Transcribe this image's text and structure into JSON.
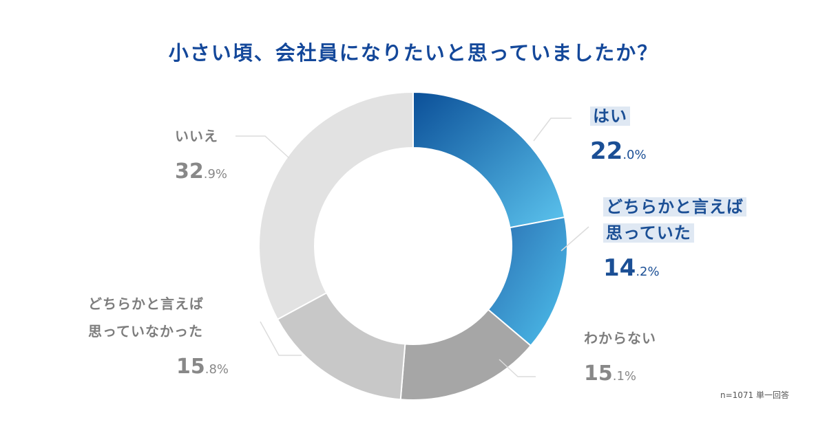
{
  "title": "小さい頃、会社員になりたいと思っていましたか？",
  "note": "n=1071 単一回答",
  "colors": {
    "title": "#14489a",
    "blue_label": "#1b4f95",
    "grey_label": "#7d7d7d",
    "slices": [
      "#3d8fcf",
      "#3aa6de",
      "#a6a6a6",
      "#c8c8c8",
      "#e2e2e2"
    ]
  },
  "chart_data": {
    "type": "pie",
    "donut": true,
    "categories": [
      "はい",
      "どちらかと言えば思っていた",
      "わからない",
      "どちらかと言えば思っていなかった",
      "いいえ"
    ],
    "values": [
      22.0,
      14.2,
      15.1,
      15.8,
      32.9
    ],
    "unit": "%"
  },
  "labels": {
    "yes": {
      "name": "はい",
      "pct_int": "22",
      "pct_dec": ".0%"
    },
    "somewhat_yes": {
      "line1": "どちらかと言えば",
      "line2": "思っていた",
      "pct_int": "14",
      "pct_dec": ".2%"
    },
    "dont_know": {
      "name": "わからない",
      "pct_int": "15",
      "pct_dec": ".1%"
    },
    "somewhat_no": {
      "line1": "どちらかと言えば",
      "line2": "思っていなかった",
      "pct_int": "15",
      "pct_dec": ".8%"
    },
    "no": {
      "name": "いいえ",
      "pct_int": "32",
      "pct_dec": ".9%"
    }
  }
}
